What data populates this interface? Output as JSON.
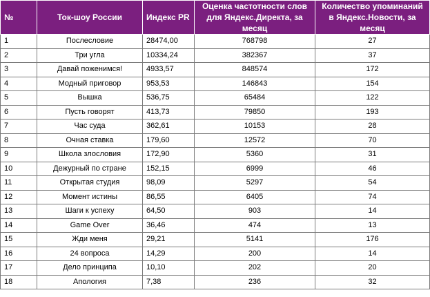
{
  "header": {
    "num": "№",
    "show": "Ток-шоу России",
    "pr": "Индекс PR",
    "freq": "Оценка частотности слов для Яндекс.Директа, за месяц",
    "news": "Количество упоминаний в Яндекс.Новости, за месяц"
  },
  "rows": [
    {
      "num": "1",
      "show": "Послесловие",
      "pr": "28474,00",
      "freq": "768798",
      "news": "27"
    },
    {
      "num": "2",
      "show": "Три угла",
      "pr": "10334,24",
      "freq": "382367",
      "news": "37"
    },
    {
      "num": "3",
      "show": "Давай поженимся!",
      "pr": "4933,57",
      "freq": "848574",
      "news": "172"
    },
    {
      "num": "4",
      "show": "Модный приговор",
      "pr": "953,53",
      "freq": "146843",
      "news": "154"
    },
    {
      "num": "5",
      "show": "Вышка",
      "pr": "536,75",
      "freq": "65484",
      "news": "122"
    },
    {
      "num": "6",
      "show": "Пусть говорят",
      "pr": "413,73",
      "freq": "79850",
      "news": "193"
    },
    {
      "num": "7",
      "show": "Час суда",
      "pr": "362,61",
      "freq": "10153",
      "news": "28"
    },
    {
      "num": "8",
      "show": "Очная ставка",
      "pr": "179,60",
      "freq": "12572",
      "news": "70"
    },
    {
      "num": "9",
      "show": "Школа злословия",
      "pr": "172,90",
      "freq": "5360",
      "news": "31"
    },
    {
      "num": "10",
      "show": "Дежурный по стране",
      "pr": "152,15",
      "freq": "6999",
      "news": "46"
    },
    {
      "num": "11",
      "show": "Открытая студия",
      "pr": "98,09",
      "freq": "5297",
      "news": "54"
    },
    {
      "num": "12",
      "show": "Момент истины",
      "pr": "86,55",
      "freq": "6405",
      "news": "74"
    },
    {
      "num": "13",
      "show": "Шаги к успеху",
      "pr": "64,50",
      "freq": "903",
      "news": "14"
    },
    {
      "num": "14",
      "show": "Game Over",
      "pr": "36,46",
      "freq": "474",
      "news": "13"
    },
    {
      "num": "15",
      "show": "Жди меня",
      "pr": "29,21",
      "freq": "5141",
      "news": "176"
    },
    {
      "num": "16",
      "show": "24 вопроса",
      "pr": "14,29",
      "freq": "200",
      "news": "14"
    },
    {
      "num": "17",
      "show": "Дело принципа",
      "pr": "10,10",
      "freq": "202",
      "news": "20"
    },
    {
      "num": "18",
      "show": "Апология",
      "pr": "7,38",
      "freq": "236",
      "news": "32"
    }
  ]
}
